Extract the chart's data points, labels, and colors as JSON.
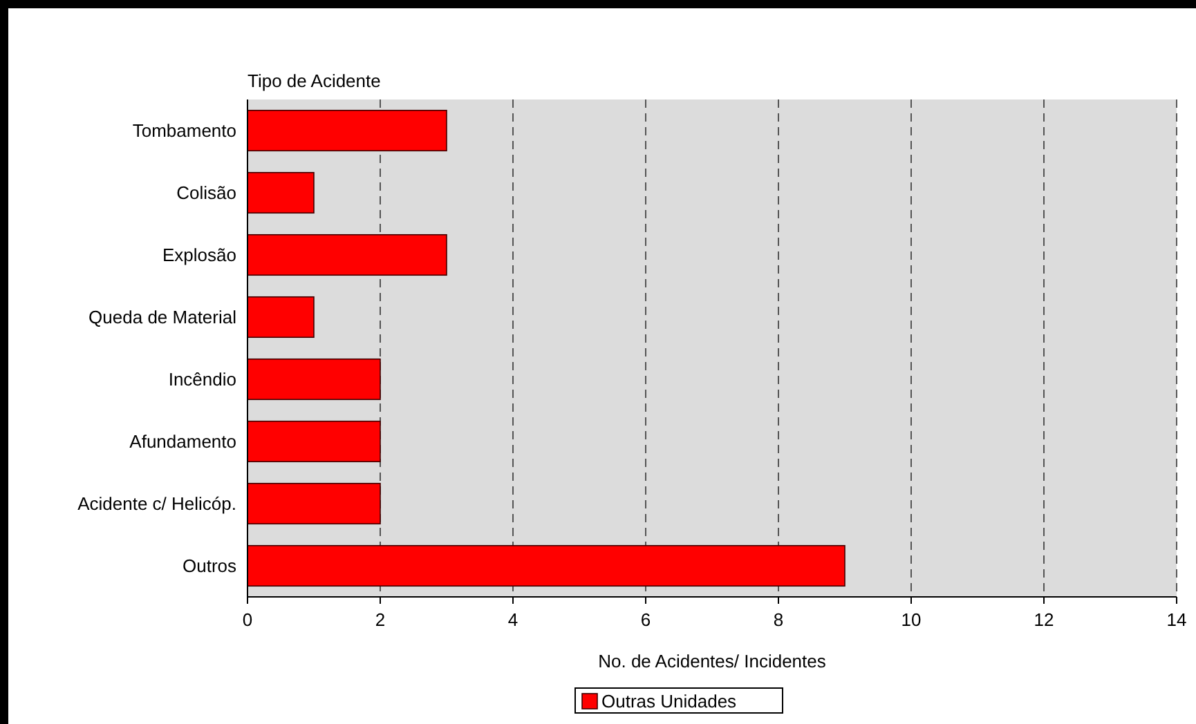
{
  "chart_data": {
    "type": "bar",
    "orientation": "horizontal",
    "ylabel": "Tipo de Acidente",
    "xlabel": "No. de Acidentes/ Incidentes",
    "categories": [
      "Tombamento",
      "Colisão",
      "Explosão",
      "Queda de Material",
      "Incêndio",
      "Afundamento",
      "Acidente c/ Helicóp.",
      "Outros"
    ],
    "series": [
      {
        "name": "Outras Unidades",
        "color": "#ff0000",
        "values": [
          3,
          1,
          3,
          1,
          2,
          2,
          2,
          9
        ]
      }
    ],
    "xlim": [
      0,
      14
    ],
    "xticks": [
      0,
      2,
      4,
      6,
      8,
      10,
      12,
      14
    ],
    "grid": "x",
    "legend": "bottom"
  }
}
